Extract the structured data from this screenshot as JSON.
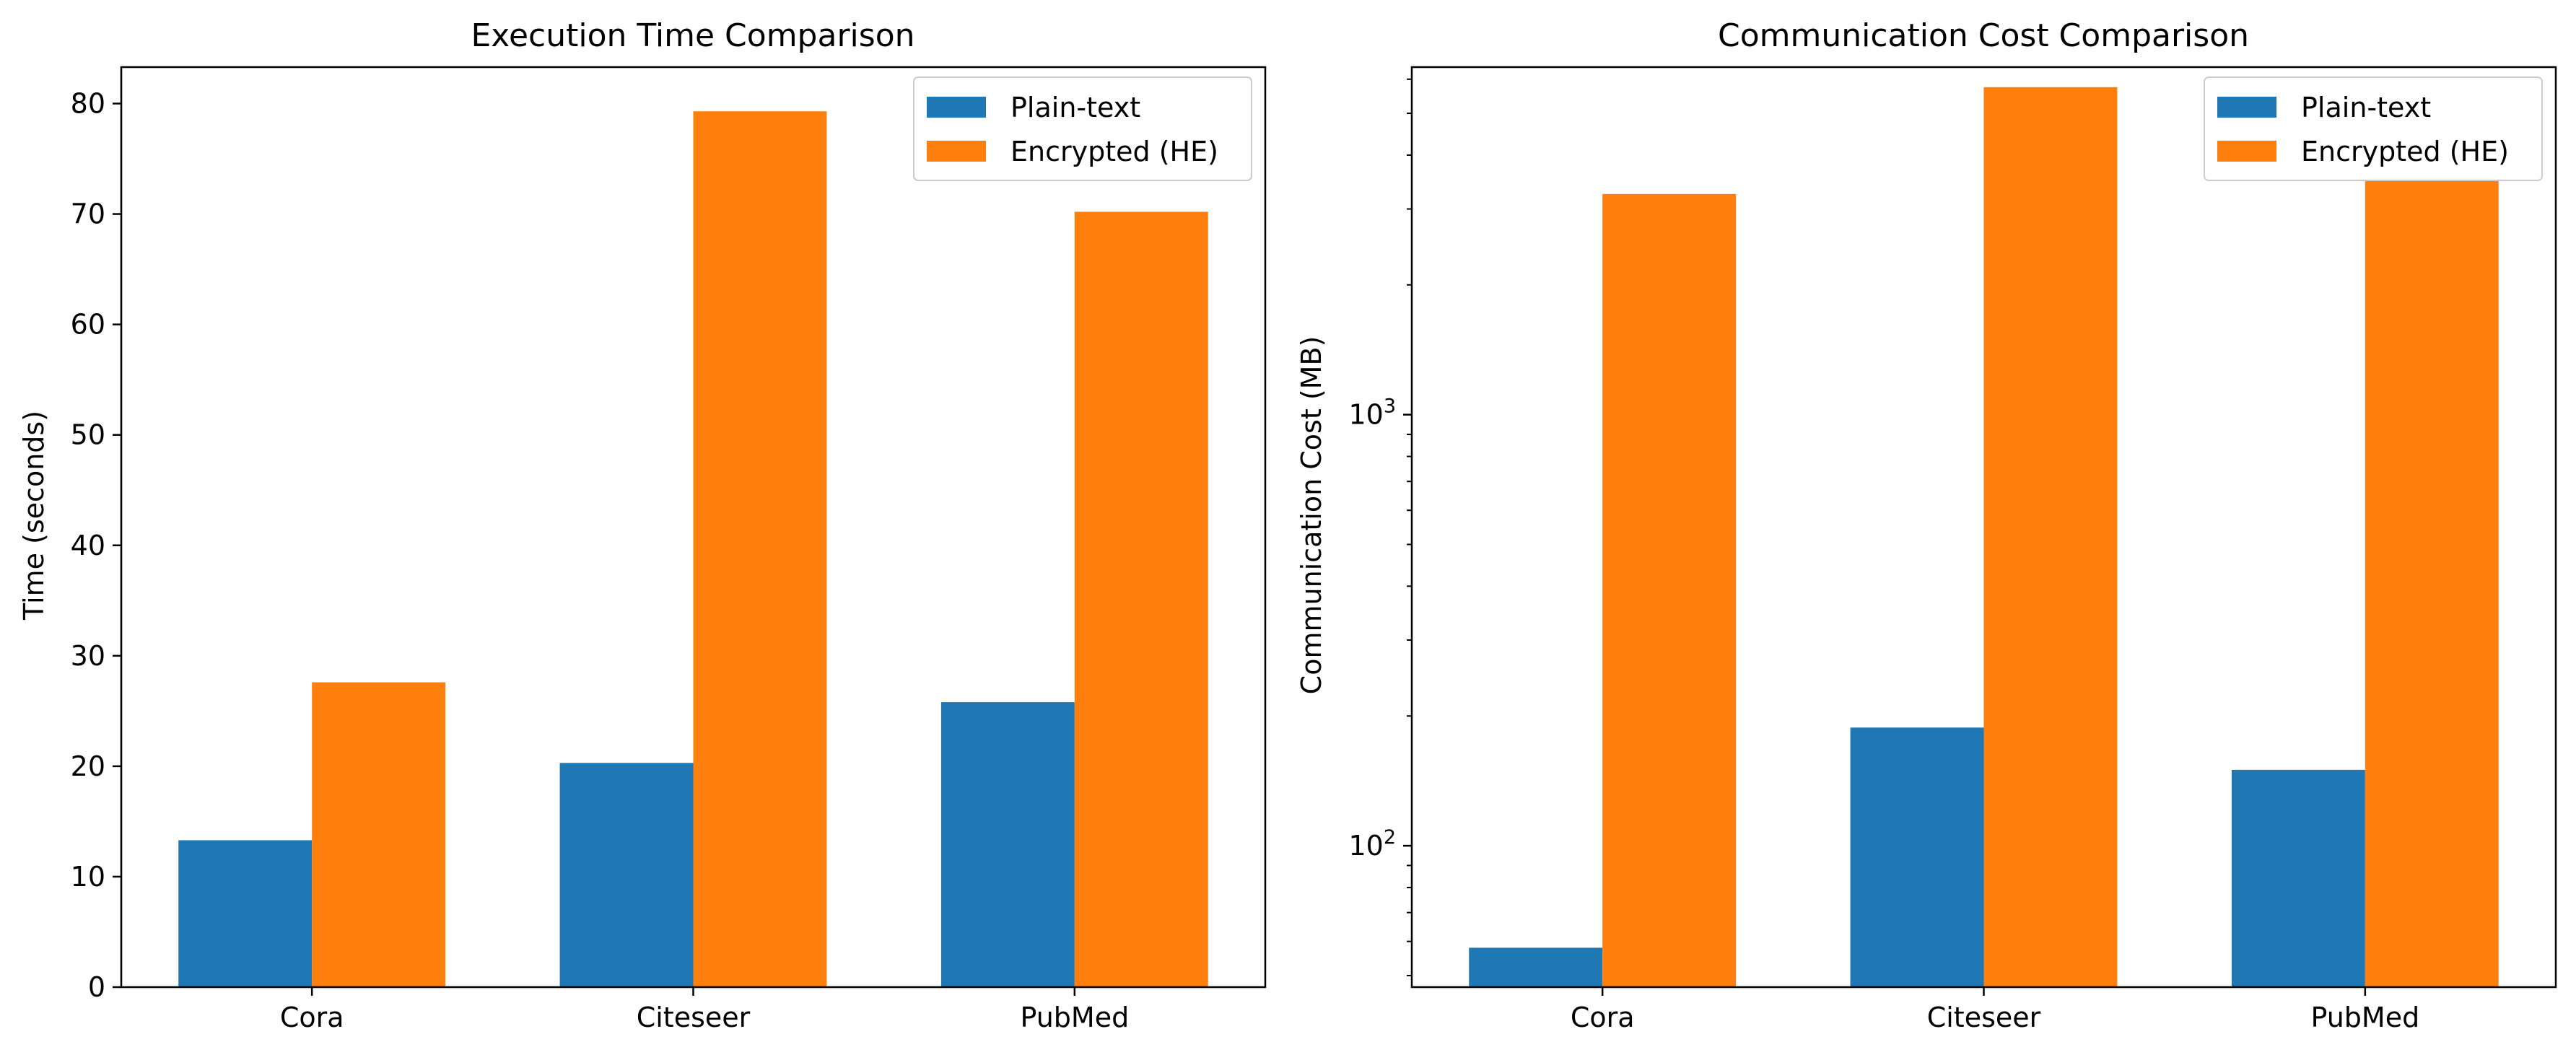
{
  "chart_data": [
    {
      "type": "bar",
      "title": "Execution Time Comparison",
      "xlabel": "",
      "ylabel": "Time (seconds)",
      "categories": [
        "Cora",
        "Citeseer",
        "PubMed"
      ],
      "series": [
        {
          "name": "Plain-text",
          "values": [
            13.3,
            20.3,
            25.8
          ],
          "color": "#1f77b4"
        },
        {
          "name": "Encrypted (HE)",
          "values": [
            27.6,
            79.3,
            70.2
          ],
          "color": "#ff7f0e"
        }
      ],
      "yscale": "linear",
      "ylim": [
        0,
        83.3
      ],
      "yticks": [
        0,
        10,
        20,
        30,
        40,
        50,
        60,
        70,
        80
      ],
      "ytick_labels": [
        "0",
        "10",
        "20",
        "30",
        "40",
        "50",
        "60",
        "70",
        "80"
      ],
      "legend": "top-right",
      "grid": false
    },
    {
      "type": "bar",
      "title": "Communication Cost Comparison",
      "xlabel": "",
      "ylabel": "Communication Cost (MB)",
      "categories": [
        "Cora",
        "Citeseer",
        "PubMed"
      ],
      "series": [
        {
          "name": "Plain-text",
          "values": [
            58,
            188,
            150
          ],
          "color": "#1f77b4"
        },
        {
          "name": "Encrypted (HE)",
          "values": [
            3250,
            5750,
            3580
          ],
          "color": "#ff7f0e"
        }
      ],
      "yscale": "log",
      "ylim": [
        47,
        6400
      ],
      "yticks": [
        100,
        1000
      ],
      "ytick_labels": [
        "10^2",
        "10^3"
      ],
      "legend": "top-right",
      "grid": false
    }
  ]
}
